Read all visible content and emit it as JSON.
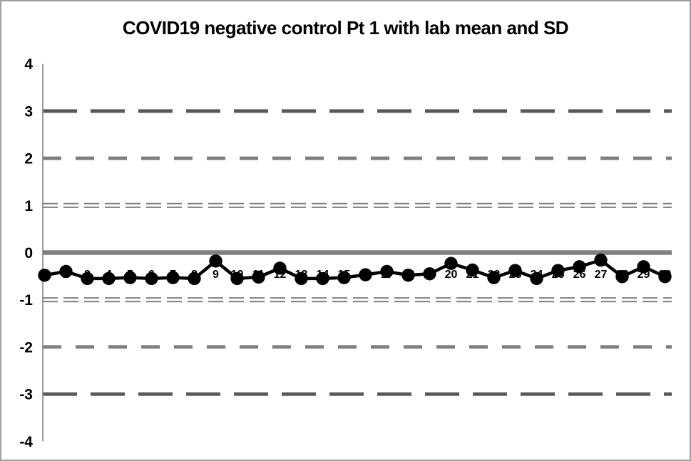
{
  "window": {
    "background": "#ffffff",
    "border_color": "#9e9e9e"
  },
  "chart_data": {
    "type": "line",
    "title": "COVID19 negative control Pt 1 with lab mean and SD",
    "xlabel": "",
    "ylabel": "",
    "ylim": [
      -4,
      4
    ],
    "yticks": [
      "4",
      "3",
      "2",
      "1",
      "0",
      "-1",
      "-2",
      "-3",
      "-4"
    ],
    "grid": "horizontal-reference-lines-only",
    "legend_position": "none",
    "categories": [
      "1",
      "2",
      "3",
      "4",
      "5",
      "6",
      "7",
      "8",
      "9",
      "10",
      "11",
      "12",
      "13",
      "14",
      "15",
      "16",
      "17",
      "18",
      "19",
      "20",
      "21",
      "22",
      "23",
      "24",
      "25",
      "26",
      "27",
      "28",
      "29",
      "30"
    ],
    "series": [
      {
        "marker": "circle",
        "color": "#000000",
        "values": [
          -0.48,
          -0.4,
          -0.55,
          -0.55,
          -0.53,
          -0.55,
          -0.53,
          -0.55,
          -0.18,
          -0.55,
          -0.52,
          -0.33,
          -0.55,
          -0.55,
          -0.53,
          -0.47,
          -0.4,
          -0.48,
          -0.45,
          -0.23,
          -0.37,
          -0.53,
          -0.38,
          -0.55,
          -0.38,
          -0.3,
          -0.16,
          -0.51,
          -0.3,
          -0.51
        ]
      }
    ],
    "reference_lines": [
      {
        "value": 3,
        "style": "long-dash",
        "color": "#595959",
        "width": 5
      },
      {
        "value": 2,
        "style": "medium-dash",
        "color": "#7f7f7f",
        "width": 5
      },
      {
        "value": 1,
        "style": "double-dash",
        "color": "#7f7f7f",
        "width": 2
      },
      {
        "value": 0,
        "style": "solid",
        "color": "#808080",
        "width": 6.5
      },
      {
        "value": -1,
        "style": "double-dash",
        "color": "#7f7f7f",
        "width": 2
      },
      {
        "value": -2,
        "style": "medium-dash",
        "color": "#7f7f7f",
        "width": 5
      },
      {
        "value": -3,
        "style": "long-dash",
        "color": "#595959",
        "width": 5
      }
    ],
    "axis_color": "#808080",
    "label_color": "#000000"
  }
}
